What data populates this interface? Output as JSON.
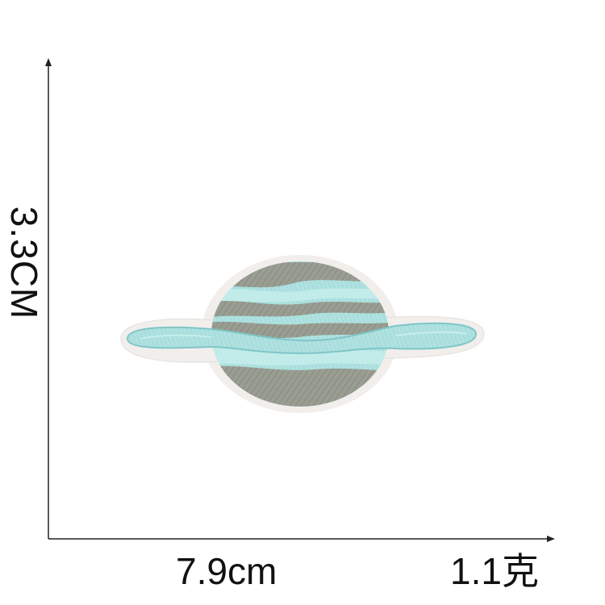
{
  "dimensions": {
    "height": "3.3CM",
    "width": "7.9cm",
    "weight": "1.1克"
  },
  "patch": {
    "subject": "planet-with-ring-icon",
    "colors": {
      "light_blue": "#a9dedd",
      "light_blue_highlight": "#c7eeec",
      "grey_stripe": "#9a9e92",
      "border": "#f1eeec",
      "ring_outline": "#7fc6c7"
    }
  },
  "axes_color": "#222222"
}
